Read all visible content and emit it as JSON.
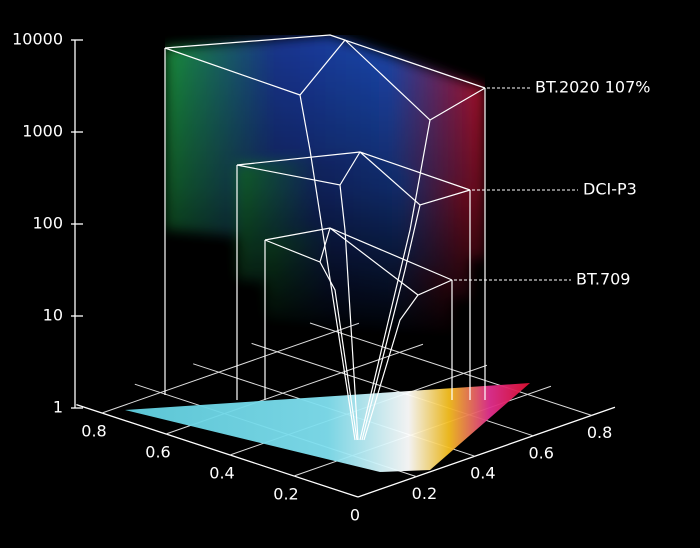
{
  "chart_data": {
    "type": "color-volume",
    "yscale": "log",
    "ylim": [
      1,
      10000
    ],
    "yticks": [
      1,
      10,
      100,
      1000,
      10000
    ],
    "xticks": [
      0,
      0.2,
      0.4,
      0.6,
      0.8
    ],
    "zticks": [
      0.2,
      0.4,
      0.6,
      0.8
    ],
    "volumes": [
      {
        "name": "BT.2020 107%"
      },
      {
        "name": "DCI-P3"
      },
      {
        "name": "BT.709"
      }
    ]
  }
}
